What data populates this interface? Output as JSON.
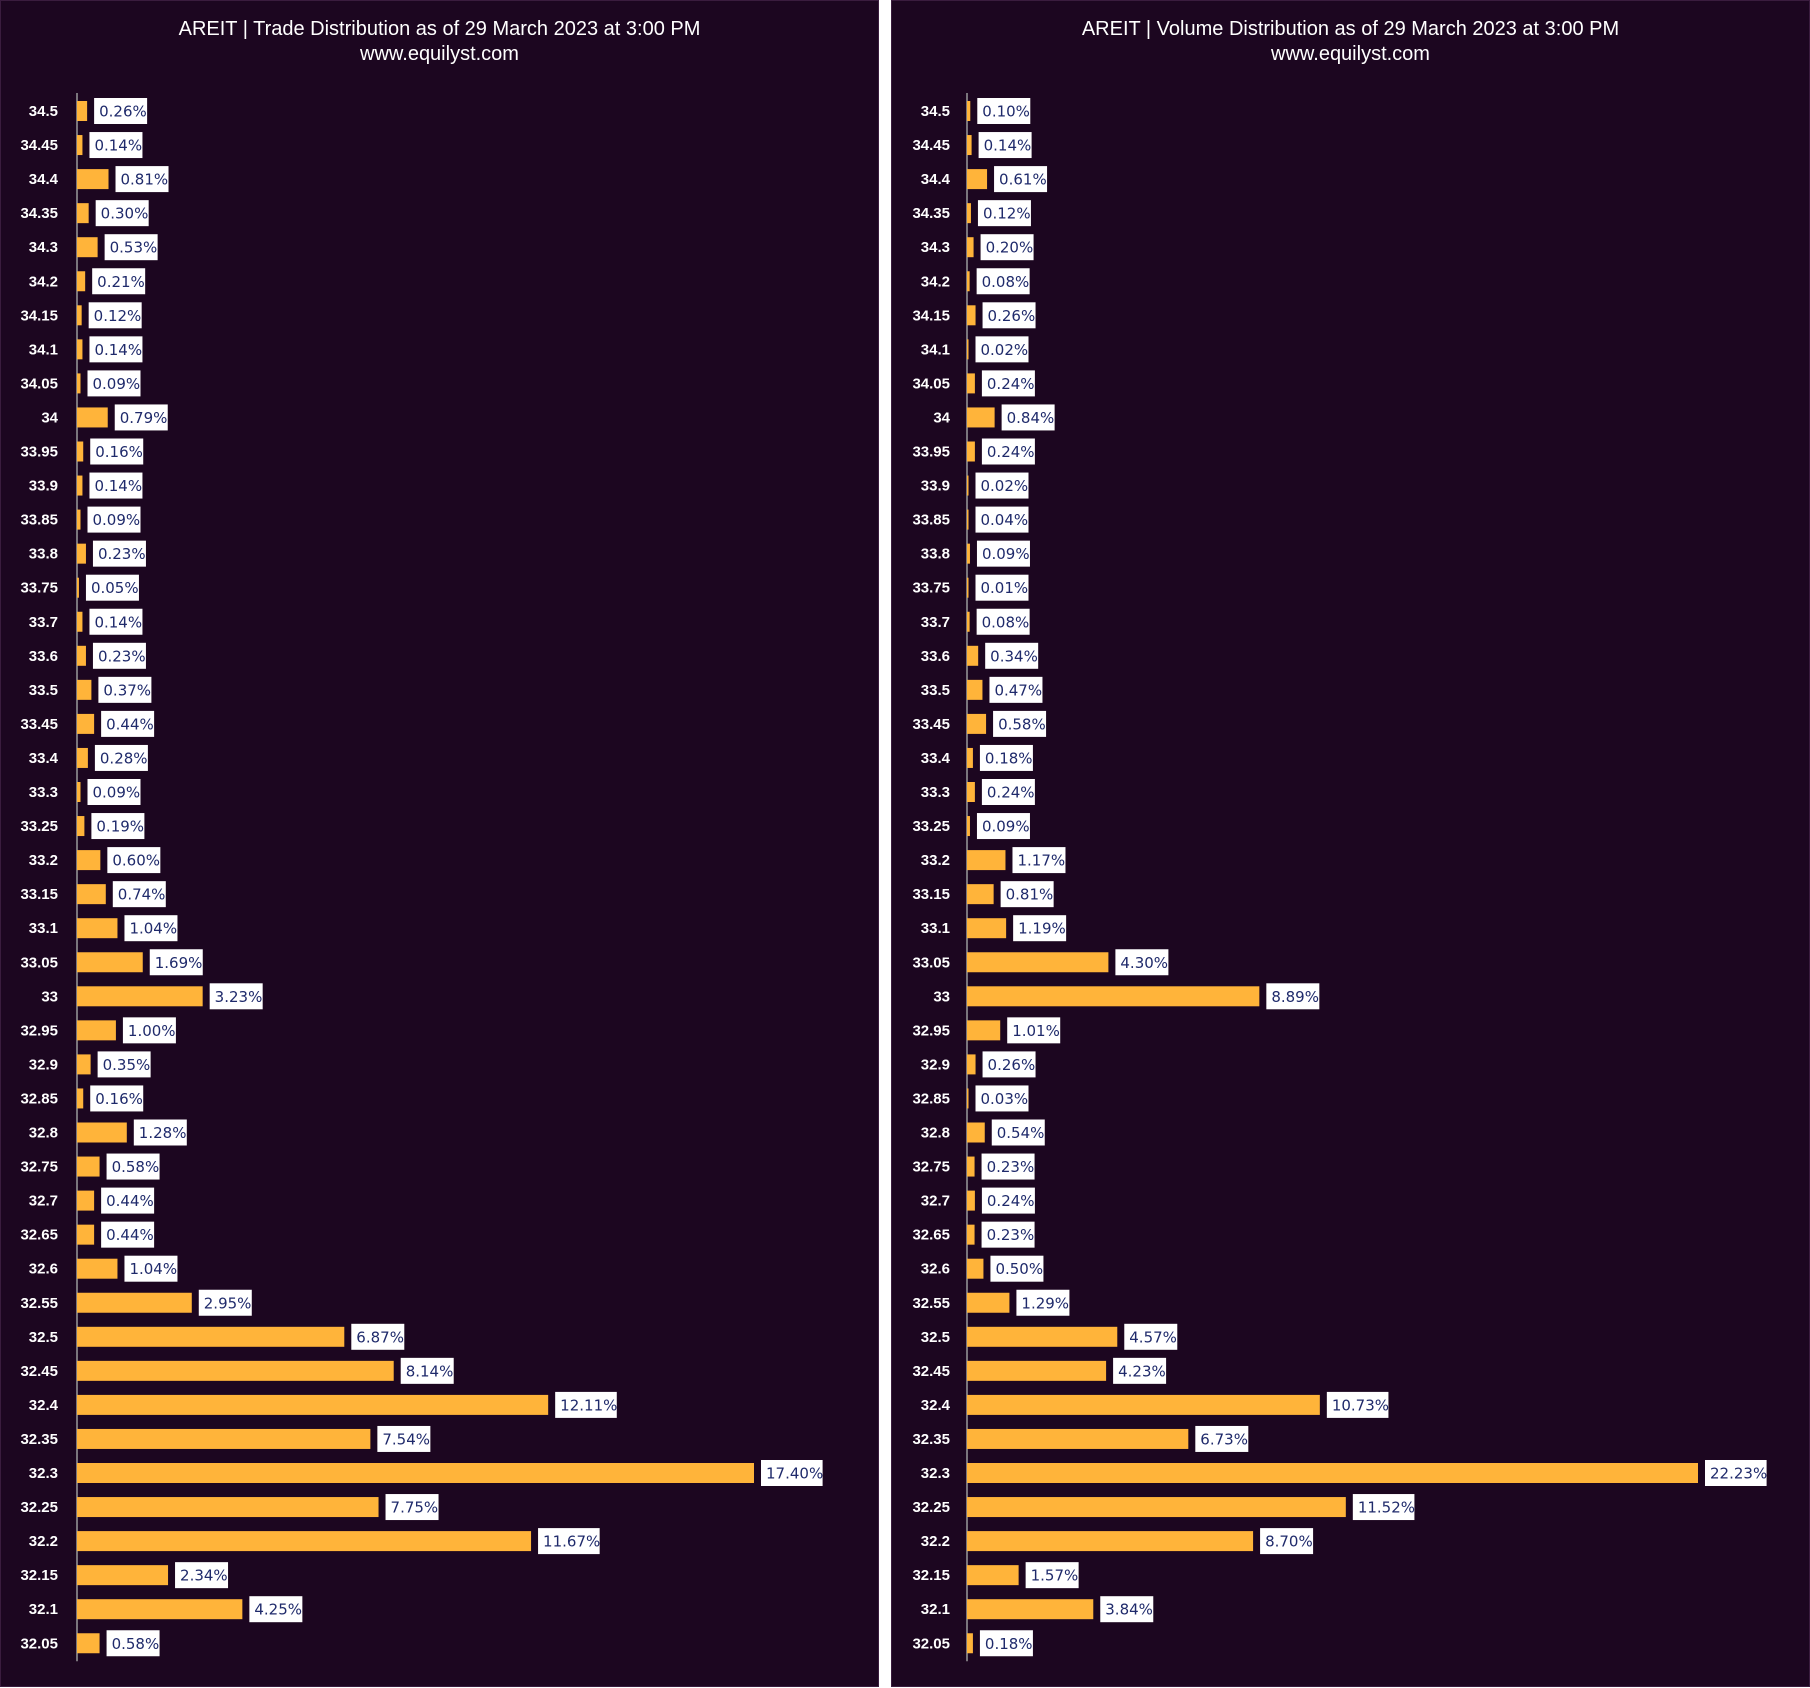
{
  "colors": {
    "background": "#1c0620",
    "bar": "#ffb43a",
    "label_box": "#ffffff",
    "label_text": "#1f2a6b",
    "text": "#ffffff"
  },
  "chart_data": [
    {
      "type": "bar",
      "orientation": "horizontal",
      "title": "AREIT | Trade Distribution as of 29 March 2023 at 3:00 PM",
      "subtitle": "www.equilyst.com",
      "categories": [
        "34.5",
        "34.45",
        "34.4",
        "34.35",
        "34.3",
        "34.2",
        "34.15",
        "34.1",
        "34.05",
        "34",
        "33.95",
        "33.9",
        "33.85",
        "33.8",
        "33.75",
        "33.7",
        "33.6",
        "33.5",
        "33.45",
        "33.4",
        "33.3",
        "33.25",
        "33.2",
        "33.15",
        "33.1",
        "33.05",
        "33",
        "32.95",
        "32.9",
        "32.85",
        "32.8",
        "32.75",
        "32.7",
        "32.65",
        "32.6",
        "32.55",
        "32.5",
        "32.45",
        "32.4",
        "32.35",
        "32.3",
        "32.25",
        "32.2",
        "32.15",
        "32.1",
        "32.05"
      ],
      "values": [
        0.26,
        0.14,
        0.81,
        0.3,
        0.53,
        0.21,
        0.12,
        0.14,
        0.09,
        0.79,
        0.16,
        0.14,
        0.09,
        0.23,
        0.05,
        0.14,
        0.23,
        0.37,
        0.44,
        0.28,
        0.09,
        0.19,
        0.6,
        0.74,
        1.04,
        1.69,
        3.23,
        1.0,
        0.35,
        0.16,
        1.28,
        0.58,
        0.44,
        0.44,
        1.04,
        2.95,
        6.87,
        8.14,
        12.11,
        7.54,
        17.4,
        7.75,
        11.67,
        2.34,
        4.25,
        0.58
      ],
      "value_labels": [
        "0.26%",
        "0.14%",
        "0.81%",
        "0.30%",
        "0.53%",
        "0.21%",
        "0.12%",
        "0.14%",
        "0.09%",
        "0.79%",
        "0.16%",
        "0.14%",
        "0.09%",
        "0.23%",
        "0.05%",
        "0.14%",
        "0.23%",
        "0.37%",
        "0.44%",
        "0.28%",
        "0.09%",
        "0.19%",
        "0.60%",
        "0.74%",
        "1.04%",
        "1.69%",
        "3.23%",
        "1.00%",
        "0.35%",
        "0.16%",
        "1.28%",
        "0.58%",
        "0.44%",
        "0.44%",
        "1.04%",
        "2.95%",
        "6.87%",
        "8.14%",
        "12.11%",
        "7.54%",
        "17.40%",
        "7.75%",
        "11.67%",
        "2.34%",
        "4.25%",
        "0.58%"
      ],
      "xlim": [
        0,
        17.4
      ],
      "grid": false,
      "legend": "none"
    },
    {
      "type": "bar",
      "orientation": "horizontal",
      "title": "AREIT | Volume Distribution as of 29 March 2023 at 3:00 PM",
      "subtitle": "www.equilyst.com",
      "categories": [
        "34.5",
        "34.45",
        "34.4",
        "34.35",
        "34.3",
        "34.2",
        "34.15",
        "34.1",
        "34.05",
        "34",
        "33.95",
        "33.9",
        "33.85",
        "33.8",
        "33.75",
        "33.7",
        "33.6",
        "33.5",
        "33.45",
        "33.4",
        "33.3",
        "33.25",
        "33.2",
        "33.15",
        "33.1",
        "33.05",
        "33",
        "32.95",
        "32.9",
        "32.85",
        "32.8",
        "32.75",
        "32.7",
        "32.65",
        "32.6",
        "32.55",
        "32.5",
        "32.45",
        "32.4",
        "32.35",
        "32.3",
        "32.25",
        "32.2",
        "32.15",
        "32.1",
        "32.05"
      ],
      "values": [
        0.1,
        0.14,
        0.61,
        0.12,
        0.2,
        0.08,
        0.26,
        0.02,
        0.24,
        0.84,
        0.24,
        0.02,
        0.04,
        0.09,
        0.01,
        0.08,
        0.34,
        0.47,
        0.58,
        0.18,
        0.24,
        0.09,
        1.17,
        0.81,
        1.19,
        4.3,
        8.89,
        1.01,
        0.26,
        0.03,
        0.54,
        0.23,
        0.24,
        0.23,
        0.5,
        1.29,
        4.57,
        4.23,
        10.73,
        6.73,
        22.23,
        11.52,
        8.7,
        1.57,
        3.84,
        0.18
      ],
      "value_labels": [
        "0.10%",
        "0.14%",
        "0.61%",
        "0.12%",
        "0.20%",
        "0.08%",
        "0.26%",
        "0.02%",
        "0.24%",
        "0.84%",
        "0.24%",
        "0.02%",
        "0.04%",
        "0.09%",
        "0.01%",
        "0.08%",
        "0.34%",
        "0.47%",
        "0.58%",
        "0.18%",
        "0.24%",
        "0.09%",
        "1.17%",
        "0.81%",
        "1.19%",
        "4.30%",
        "8.89%",
        "1.01%",
        "0.26%",
        "0.03%",
        "0.54%",
        "0.23%",
        "0.24%",
        "0.23%",
        "0.50%",
        "1.29%",
        "4.57%",
        "4.23%",
        "10.73%",
        "6.73%",
        "22.23%",
        "11.52%",
        "8.70%",
        "1.57%",
        "3.84%",
        "0.18%"
      ],
      "xlim": [
        0,
        22.23
      ],
      "grid": false,
      "legend": "none"
    }
  ]
}
